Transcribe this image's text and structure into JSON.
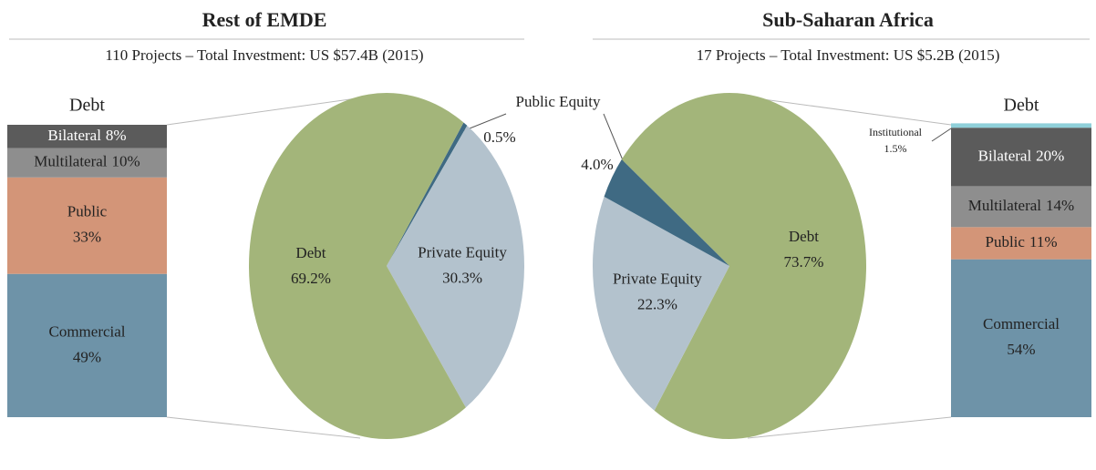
{
  "chart_data": [
    {
      "type": "pie",
      "title": "Rest of EMDE",
      "subtitle": "110 Projects – Total Investment: US $57.4B (2015)",
      "categories": [
        "Debt",
        "Private Equity",
        "Public Equity"
      ],
      "values": [
        69.2,
        30.3,
        0.5
      ],
      "value_labels": [
        "69.2%",
        "30.3%",
        "0.5%"
      ],
      "colors": [
        "#a3b57a",
        "#b3c2cd",
        "#3f6a83"
      ]
    },
    {
      "type": "bar",
      "stacked": true,
      "title": "Debt",
      "ylim": [
        0,
        100
      ],
      "series": [
        {
          "name": "Bilateral",
          "color": "#5b5b5b",
          "values": [
            8
          ],
          "value_labels": [
            "8%"
          ]
        },
        {
          "name": "Multilateral",
          "color": "#8e8e8e",
          "values": [
            10
          ],
          "value_labels": [
            "10%"
          ]
        },
        {
          "name": "Public",
          "color": "#d39578",
          "values": [
            33
          ],
          "value_labels": [
            "33%"
          ]
        },
        {
          "name": "Commercial",
          "color": "#6e93a8",
          "values": [
            49
          ],
          "value_labels": [
            "49%"
          ]
        }
      ]
    },
    {
      "type": "pie",
      "title": "Sub-Saharan Africa",
      "subtitle": "17 Projects – Total Investment: US $5.2B (2015)",
      "categories": [
        "Debt",
        "Private Equity",
        null
      ],
      "values": [
        73.7,
        22.3,
        4.0
      ],
      "value_labels": [
        "73.7%",
        "22.3%",
        "4.0%"
      ],
      "colors": [
        "#a3b57a",
        "#b3c2cd",
        "#3f6a83"
      ]
    },
    {
      "type": "bar",
      "stacked": true,
      "title": "Debt",
      "ylim": [
        0,
        100
      ],
      "series": [
        {
          "name": "Institutional",
          "color": "#8fd0d9",
          "values": [
            1.5
          ],
          "value_labels": [
            "1.5%"
          ]
        },
        {
          "name": "Bilateral",
          "color": "#5b5b5b",
          "values": [
            20
          ],
          "value_labels": [
            "20%"
          ]
        },
        {
          "name": "Multilateral",
          "color": "#8e8e8e",
          "values": [
            14
          ],
          "value_labels": [
            "14%"
          ]
        },
        {
          "name": "Public",
          "color": "#d39578",
          "values": [
            11
          ],
          "value_labels": [
            "11%"
          ]
        },
        {
          "name": "Commercial",
          "color": "#6e93a8",
          "values": [
            54
          ],
          "value_labels": [
            "54%"
          ]
        }
      ]
    }
  ]
}
